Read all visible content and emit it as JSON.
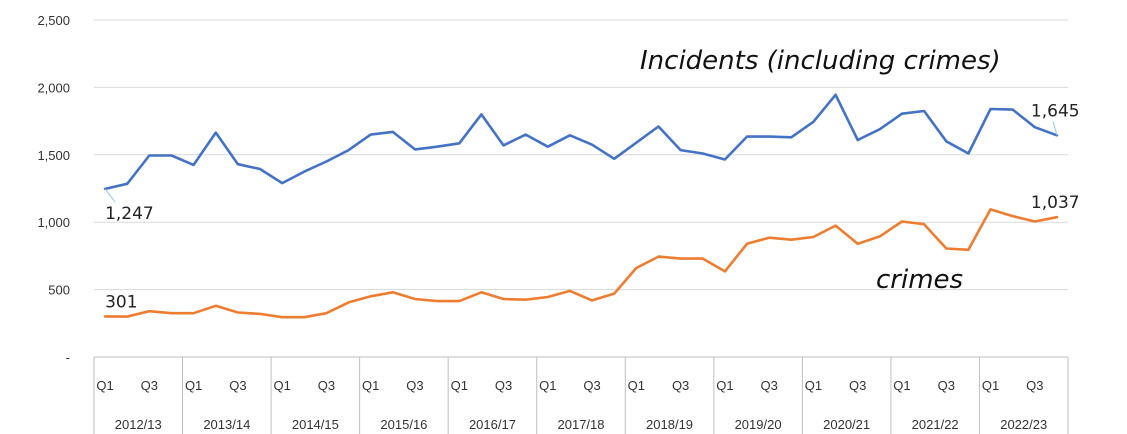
{
  "chart_data": {
    "type": "line",
    "title": "",
    "xlabel": "",
    "ylabel": "",
    "ylim": [
      0,
      2500
    ],
    "yticks": [
      {
        "value": 0,
        "label": "-"
      },
      {
        "value": 500,
        "label": "500"
      },
      {
        "value": 1000,
        "label": "1,000"
      },
      {
        "value": 1500,
        "label": "1,500"
      },
      {
        "value": 2000,
        "label": "2,000"
      },
      {
        "value": 2500,
        "label": "2,500"
      }
    ],
    "grid": true,
    "year_groups": [
      "2012/13",
      "2013/14",
      "2014/15",
      "2015/16",
      "2016/17",
      "2017/18",
      "2018/19",
      "2019/20",
      "2020/21",
      "2021/22",
      "2022/23"
    ],
    "quarter_labels": [
      "Q1",
      "",
      "Q3",
      ""
    ],
    "series": [
      {
        "annotation": "Incidents (including crimes)",
        "color": "#4472c4",
        "values": [
          1247,
          1285,
          1495,
          1495,
          1425,
          1665,
          1430,
          1395,
          1290,
          1375,
          1450,
          1535,
          1650,
          1670,
          1540,
          1560,
          1585,
          1800,
          1570,
          1650,
          1560,
          1645,
          1575,
          1470,
          1590,
          1710,
          1535,
          1510,
          1465,
          1635,
          1635,
          1630,
          1745,
          1945,
          1610,
          1690,
          1805,
          1825,
          1600,
          1510,
          1840,
          1835,
          1705,
          1645
        ],
        "first_label": "1,247",
        "last_label": "1,645"
      },
      {
        "annotation": "crimes",
        "color": "#ed7d31",
        "values": [
          301,
          300,
          340,
          325,
          325,
          380,
          330,
          320,
          295,
          295,
          325,
          405,
          450,
          480,
          430,
          415,
          415,
          480,
          430,
          425,
          445,
          490,
          420,
          470,
          660,
          745,
          730,
          730,
          635,
          840,
          885,
          870,
          890,
          975,
          840,
          895,
          1005,
          985,
          805,
          795,
          1095,
          1045,
          1005,
          1037
        ],
        "first_label": "301",
        "last_label": "1,037"
      }
    ]
  }
}
